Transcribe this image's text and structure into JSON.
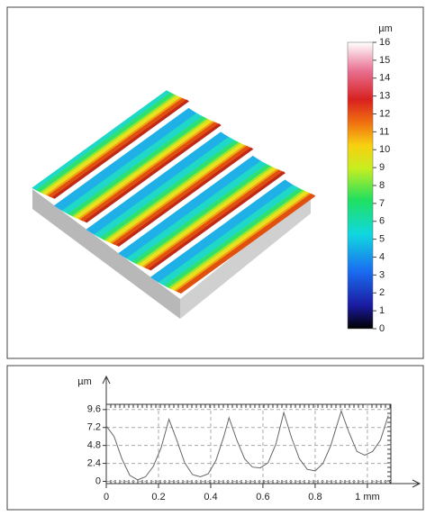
{
  "chart_data": [
    {
      "type": "surface",
      "colorbar_label": "µm",
      "clim": [
        0,
        16
      ],
      "cticks": [
        0,
        1,
        2,
        3,
        4,
        5,
        6,
        7,
        8,
        9,
        10,
        11,
        12,
        13,
        14,
        15,
        16
      ]
    },
    {
      "type": "line",
      "ylabel": "µm",
      "color": "#666666",
      "x": [
        0.0,
        0.03,
        0.06,
        0.09,
        0.12,
        0.15,
        0.18,
        0.21,
        0.24,
        0.27,
        0.3,
        0.33,
        0.36,
        0.39,
        0.42,
        0.45,
        0.47,
        0.5,
        0.53,
        0.56,
        0.59,
        0.62,
        0.65,
        0.68,
        0.71,
        0.74,
        0.77,
        0.8,
        0.83,
        0.86,
        0.9,
        0.93,
        0.96,
        0.99,
        1.02,
        1.05,
        1.08
      ],
      "values": [
        7.4,
        6.0,
        3.0,
        0.8,
        0.2,
        0.6,
        2.0,
        4.5,
        8.3,
        5.5,
        2.5,
        0.9,
        0.6,
        1.0,
        2.8,
        6.0,
        8.5,
        5.5,
        3.0,
        1.9,
        1.8,
        2.5,
        5.0,
        9.2,
        5.8,
        3.0,
        1.6,
        1.4,
        2.4,
        4.8,
        9.4,
        6.5,
        4.0,
        3.5,
        4.0,
        5.5,
        8.8
      ],
      "xlim": [
        0,
        1.09
      ],
      "ylim": [
        -0.3,
        10.3
      ],
      "xticks": [
        0,
        0.2,
        0.4,
        0.6,
        0.8,
        {
          "value": 1,
          "label": "1 mm"
        }
      ],
      "yticks": [
        0,
        2.4,
        4.8,
        7.2,
        9.6
      ],
      "grid": true
    }
  ]
}
